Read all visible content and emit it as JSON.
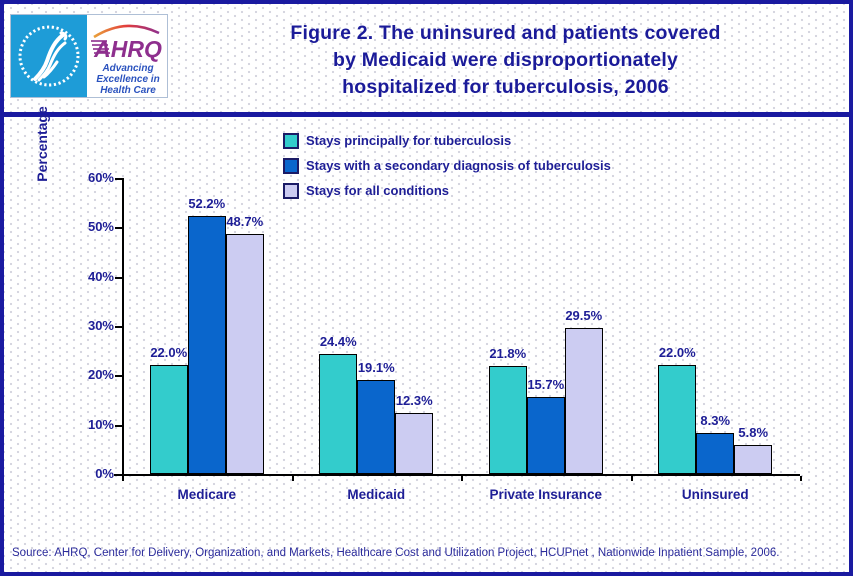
{
  "header": {
    "logo": {
      "org_abbrev": "AHRQ",
      "tagline_lines": [
        "Advancing",
        "Excellence in",
        "Health Care"
      ],
      "colors": {
        "hhs_blue": "#1e9cd7",
        "ahrq_purple": "#8e2f8e",
        "tagline_blue": "#2a52be"
      }
    },
    "title_lines": [
      "Figure 2. The uninsured and patients covered",
      "by Medicaid were disproportionately",
      "hospitalized for tuberculosis, 2006"
    ]
  },
  "chart_data": {
    "type": "bar",
    "title": "Figure 2. The uninsured and patients covered by Medicaid were disproportionately hospitalized for tuberculosis, 2006",
    "categories": [
      "Medicare",
      "Medicaid",
      "Private Insurance",
      "Uninsured"
    ],
    "series": [
      {
        "name": "Stays principally for tuberculosis",
        "color": "#33cccc",
        "values": [
          22.0,
          24.4,
          21.8,
          22.0
        ]
      },
      {
        "name": "Stays with a secondary diagnosis of tuberculosis",
        "color": "#0a66cc",
        "values": [
          52.2,
          19.1,
          15.7,
          8.3
        ]
      },
      {
        "name": "Stays for all conditions",
        "color": "#ccccf2",
        "values": [
          48.7,
          12.3,
          29.5,
          5.8
        ]
      }
    ],
    "xlabel": "",
    "ylabel": "Percentage",
    "ylim": [
      0,
      60
    ],
    "ytick_step": 10,
    "ytick_suffix": "%",
    "value_label_suffix": "%",
    "value_label_decimals": 1,
    "grid": false,
    "legend_position": "top-center"
  },
  "footer": {
    "source": "Source: AHRQ, Center for Delivery, Organization, and Markets, Healthcare Cost and Utilization Project, HCUPnet , Nationwide Inpatient Sample, 2006."
  },
  "colors": {
    "text_navy": "#1e1e96",
    "border_navy": "#1a1aa0",
    "bar_border": "#000000"
  }
}
